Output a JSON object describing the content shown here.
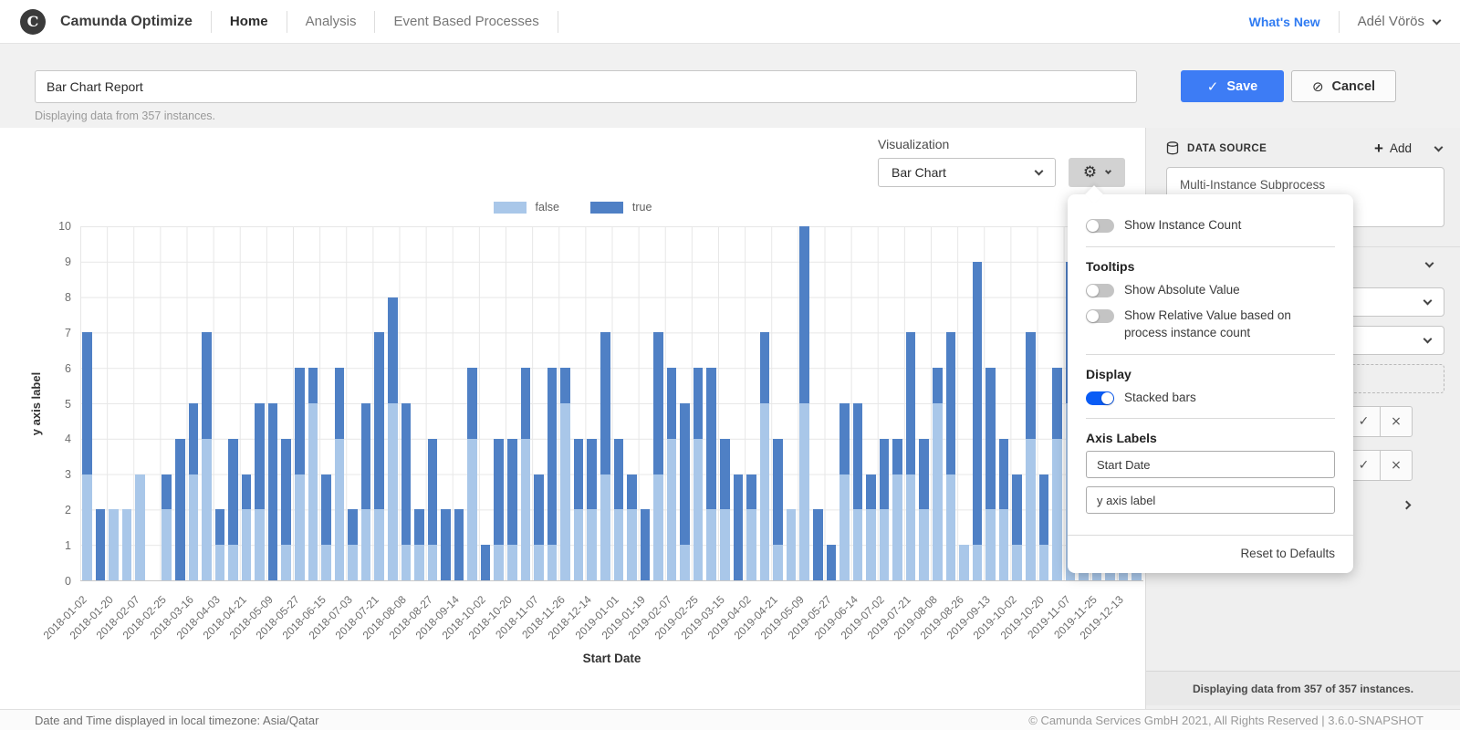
{
  "icons": {
    "plus": "+",
    "gear": "⚙",
    "check": "✓",
    "close": "×",
    "save_check": "✓",
    "cancel_slash": "⊘",
    "logo_letter": "C"
  },
  "header": {
    "brand": "Camunda Optimize",
    "nav": [
      {
        "label": "Home"
      },
      {
        "label": "Analysis"
      },
      {
        "label": "Event Based Processes"
      }
    ],
    "whats_new": "What's New",
    "user": "Adél Vörös"
  },
  "toolbar": {
    "report_name": "Bar Chart Report",
    "instance_hint": "Displaying data from 357 instances.",
    "save_label": "Save",
    "cancel_label": "Cancel"
  },
  "visualization": {
    "label": "Visualization",
    "value": "Bar Chart"
  },
  "settings_popover": {
    "show_instance_count": "Show Instance Count",
    "tooltips_heading": "Tooltips",
    "show_absolute": "Show Absolute Value",
    "show_relative": "Show Relative Value based on process instance count",
    "display_heading": "Display",
    "stacked_bars": "Stacked bars",
    "axis_labels_heading": "Axis Labels",
    "x_axis_value": "Start Date",
    "y_axis_value": "y axis label",
    "reset_label": "Reset to Defaults"
  },
  "sidebar": {
    "data_source_heading": "DATA SOURCE",
    "add_label": "Add",
    "definition_name": "Multi-Instance Subprocess",
    "instance_footer": "Displaying data from 357 of 357 instances."
  },
  "footer": {
    "timezone": "Date and Time displayed in local timezone: Asia/Qatar",
    "copyright": "© Camunda Services GmbH 2021, All Rights Reserved | 3.6.0-SNAPSHOT"
  },
  "chart_data": {
    "type": "bar",
    "stacked": true,
    "xlabel": "Start Date",
    "ylabel": "y axis label",
    "ylim": [
      0,
      10
    ],
    "y_ticks": [
      0,
      1,
      2,
      3,
      4,
      5,
      6,
      7,
      8,
      9,
      10
    ],
    "grid": true,
    "legend": {
      "position": "top",
      "entries": [
        "false",
        "true"
      ]
    },
    "colors": {
      "false": "#a9c7e9",
      "true": "#4f80c5"
    },
    "categories": [
      "2018-01-02",
      "2018-01-20",
      "2018-02-07",
      "2018-02-25",
      "2018-03-16",
      "2018-04-03",
      "2018-04-21",
      "2018-05-09",
      "2018-05-27",
      "2018-06-15",
      "2018-07-03",
      "2018-07-21",
      "2018-08-08",
      "2018-08-27",
      "2018-09-14",
      "2018-10-02",
      "2018-10-20",
      "2018-11-07",
      "2018-11-26",
      "2018-12-14",
      "2019-01-01",
      "2019-01-19",
      "2019-02-07",
      "2019-02-25",
      "2019-03-15",
      "2019-04-02",
      "2019-04-21",
      "2019-05-09",
      "2019-05-27",
      "2019-06-14",
      "2019-07-02",
      "2019-07-21",
      "2019-08-08",
      "2019-08-26",
      "2019-09-13",
      "2019-10-02",
      "2019-10-20",
      "2019-11-07",
      "2019-11-25",
      "2019-12-13"
    ],
    "bars_per_category": 2,
    "series": [
      {
        "name": "false",
        "values": [
          3,
          0,
          2,
          2,
          3,
          0,
          2,
          0,
          3,
          4,
          1,
          1,
          2,
          2,
          0,
          1,
          3,
          5,
          1,
          4,
          1,
          2,
          2,
          5,
          1,
          1,
          1,
          0,
          0,
          4,
          0,
          1,
          1,
          4,
          1,
          1,
          5,
          2,
          2,
          3,
          2,
          2,
          0,
          3,
          4,
          1,
          4,
          2,
          2,
          0,
          2,
          5,
          1,
          2,
          5,
          0,
          0,
          3,
          2,
          2,
          2,
          3,
          3,
          2,
          5,
          3,
          1,
          1,
          2,
          2,
          1,
          4,
          1,
          4,
          5,
          5,
          2,
          3,
          2,
          3
        ]
      },
      {
        "name": "true",
        "values": [
          4,
          2,
          0,
          0,
          0,
          0,
          1,
          4,
          2,
          3,
          1,
          3,
          1,
          3,
          5,
          3,
          3,
          1,
          2,
          2,
          1,
          3,
          5,
          3,
          4,
          1,
          3,
          2,
          2,
          2,
          1,
          3,
          3,
          2,
          2,
          5,
          1,
          2,
          2,
          4,
          2,
          1,
          2,
          4,
          2,
          4,
          2,
          4,
          2,
          3,
          1,
          2,
          3,
          0,
          5,
          2,
          1,
          2,
          3,
          1,
          2,
          1,
          4,
          2,
          1,
          4,
          0,
          8,
          4,
          2,
          2,
          3,
          2,
          2,
          4,
          3,
          2,
          2,
          4,
          3
        ]
      }
    ]
  }
}
